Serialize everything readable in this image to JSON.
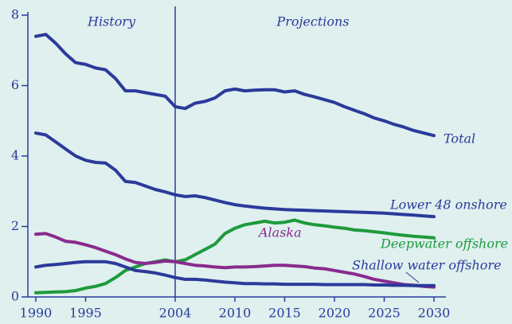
{
  "chart_data": {
    "type": "line",
    "annotations": [
      "History",
      "Projections"
    ],
    "divider": 2004,
    "x": [
      1990,
      1991,
      1992,
      1993,
      1994,
      1995,
      1996,
      1997,
      1998,
      1999,
      2000,
      2001,
      2002,
      2003,
      2004,
      2005,
      2006,
      2007,
      2008,
      2009,
      2010,
      2011,
      2012,
      2013,
      2014,
      2015,
      2016,
      2017,
      2018,
      2019,
      2020,
      2021,
      2022,
      2023,
      2024,
      2025,
      2026,
      2027,
      2028,
      2029,
      2030
    ],
    "series": [
      {
        "name": "Total",
        "color": "#2b3a9a",
        "values": [
          7.4,
          7.45,
          7.2,
          6.9,
          6.65,
          6.6,
          6.5,
          6.45,
          6.2,
          5.85,
          5.85,
          5.8,
          5.75,
          5.7,
          5.4,
          5.35,
          5.5,
          5.55,
          5.65,
          5.85,
          5.9,
          5.85,
          5.87,
          5.88,
          5.88,
          5.82,
          5.85,
          5.75,
          5.68,
          5.6,
          5.52,
          5.4,
          5.3,
          5.2,
          5.08,
          5.0,
          4.9,
          4.82,
          4.72,
          4.65,
          4.58
        ]
      },
      {
        "name": "Lower 48 onshore",
        "color": "#2b3a9a",
        "values": [
          4.65,
          4.6,
          4.4,
          4.2,
          4.0,
          3.88,
          3.82,
          3.8,
          3.6,
          3.28,
          3.25,
          3.15,
          3.05,
          2.98,
          2.9,
          2.85,
          2.87,
          2.82,
          2.75,
          2.68,
          2.62,
          2.58,
          2.55,
          2.52,
          2.5,
          2.48,
          2.47,
          2.46,
          2.45,
          2.44,
          2.43,
          2.42,
          2.41,
          2.4,
          2.39,
          2.38,
          2.36,
          2.34,
          2.32,
          2.3,
          2.28
        ]
      },
      {
        "name": "Deepwater offshore",
        "color": "#1e9a3c",
        "values": [
          0.12,
          0.13,
          0.14,
          0.15,
          0.18,
          0.25,
          0.3,
          0.38,
          0.55,
          0.75,
          0.85,
          0.95,
          1.0,
          1.05,
          1.0,
          1.05,
          1.2,
          1.35,
          1.5,
          1.8,
          1.95,
          2.05,
          2.1,
          2.15,
          2.1,
          2.12,
          2.18,
          2.1,
          2.05,
          2.02,
          1.98,
          1.95,
          1.9,
          1.88,
          1.85,
          1.82,
          1.78,
          1.75,
          1.72,
          1.7,
          1.68
        ]
      },
      {
        "name": "Alaska",
        "color": "#8a2a8e",
        "values": [
          1.78,
          1.8,
          1.7,
          1.58,
          1.55,
          1.48,
          1.4,
          1.3,
          1.2,
          1.08,
          0.98,
          0.95,
          0.98,
          1.02,
          1.0,
          0.95,
          0.9,
          0.88,
          0.85,
          0.83,
          0.85,
          0.85,
          0.86,
          0.88,
          0.9,
          0.9,
          0.88,
          0.86,
          0.82,
          0.8,
          0.75,
          0.7,
          0.65,
          0.58,
          0.5,
          0.45,
          0.4,
          0.35,
          0.33,
          0.3,
          0.28
        ]
      },
      {
        "name": "Shallow water offshore",
        "color": "#2b3a9a",
        "values": [
          0.85,
          0.9,
          0.92,
          0.95,
          0.98,
          1.0,
          1.0,
          1.0,
          0.95,
          0.85,
          0.75,
          0.72,
          0.68,
          0.62,
          0.55,
          0.5,
          0.5,
          0.48,
          0.45,
          0.42,
          0.4,
          0.38,
          0.38,
          0.37,
          0.37,
          0.36,
          0.36,
          0.36,
          0.36,
          0.35,
          0.35,
          0.35,
          0.35,
          0.35,
          0.34,
          0.34,
          0.33,
          0.33,
          0.32,
          0.32,
          0.32
        ]
      }
    ],
    "xlim": [
      1990,
      2030
    ],
    "xticks": [
      1990,
      1995,
      2004,
      2010,
      2015,
      2020,
      2025,
      2030
    ],
    "ylim": [
      0,
      8
    ],
    "yticks": [
      0,
      2,
      4,
      6,
      8
    ]
  }
}
